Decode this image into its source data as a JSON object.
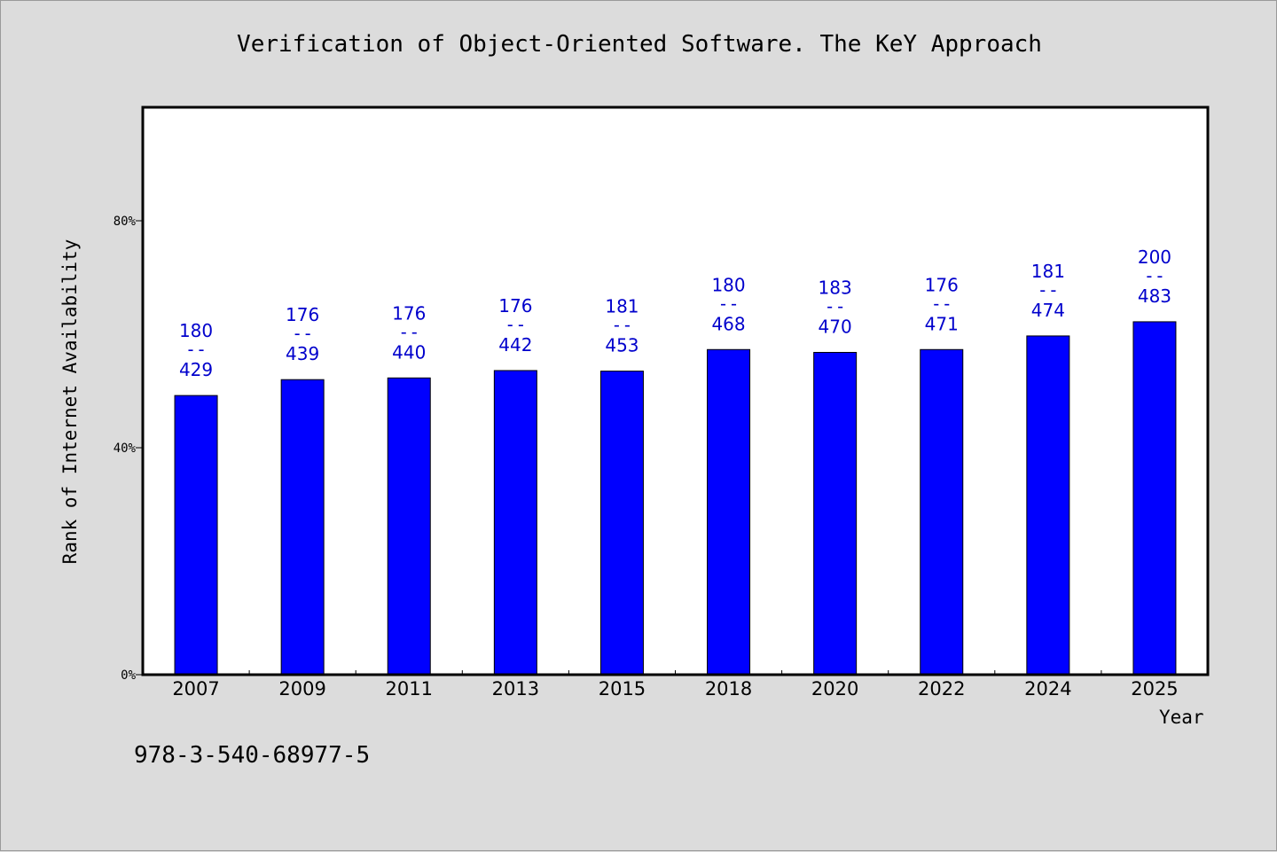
{
  "chart_data": {
    "type": "bar",
    "title": "Verification of Object-Oriented Software. The KeY Approach",
    "xlabel": "Year",
    "ylabel": "Rank of Internet Availability",
    "footnote": "978-3-540-68977-5",
    "categories": [
      "2007",
      "2009",
      "2011",
      "2013",
      "2015",
      "2018",
      "2020",
      "2022",
      "2024",
      "2025"
    ],
    "values": [
      49.2,
      52.0,
      52.3,
      53.6,
      53.5,
      57.3,
      56.8,
      57.3,
      59.7,
      62.2
    ],
    "data_labels": [
      {
        "top": "180",
        "sep": "--",
        "bottom": "429"
      },
      {
        "top": "176",
        "sep": "--",
        "bottom": "439"
      },
      {
        "top": "176",
        "sep": "--",
        "bottom": "440"
      },
      {
        "top": "176",
        "sep": "--",
        "bottom": "442"
      },
      {
        "top": "181",
        "sep": "--",
        "bottom": "453"
      },
      {
        "top": "180",
        "sep": "--",
        "bottom": "468"
      },
      {
        "top": "183",
        "sep": "--",
        "bottom": "470"
      },
      {
        "top": "176",
        "sep": "--",
        "bottom": "471"
      },
      {
        "top": "181",
        "sep": "--",
        "bottom": "474"
      },
      {
        "top": "200",
        "sep": "--",
        "bottom": "483"
      }
    ],
    "ylim": [
      0,
      100
    ],
    "yticks": [
      {
        "value": 0,
        "label": "0%"
      },
      {
        "value": 40,
        "label": "40%"
      },
      {
        "value": 80,
        "label": "80%"
      }
    ],
    "grid": false,
    "legend": "none",
    "colors": {
      "bar": "#0000ff",
      "label": "#0000cc",
      "background": "#dcdcdc",
      "plot_background": "#ffffff",
      "axis": "#000000"
    }
  }
}
